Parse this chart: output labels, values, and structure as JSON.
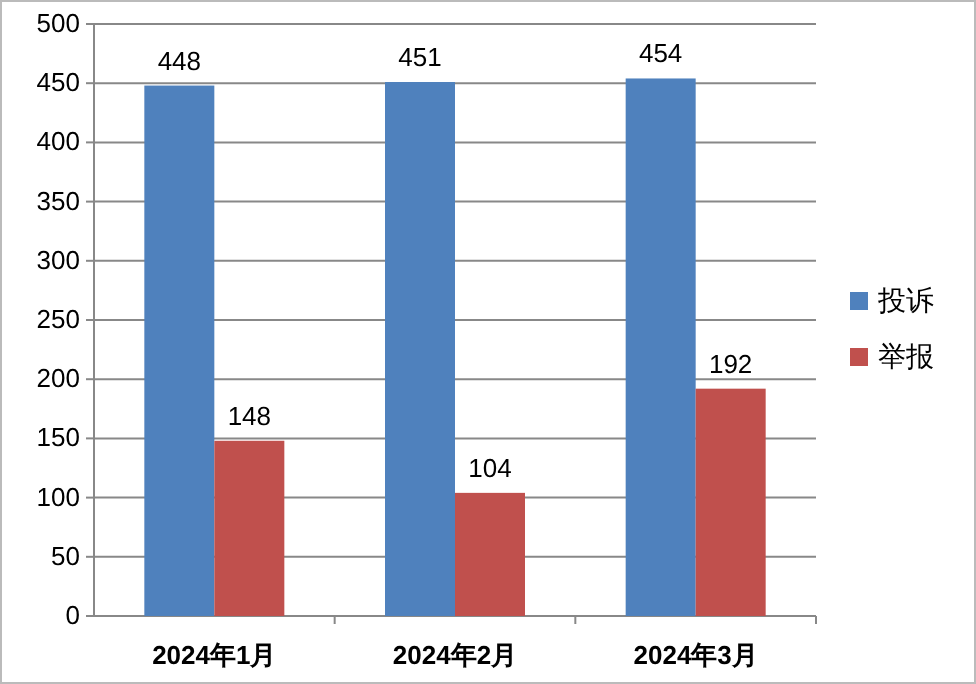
{
  "chart_data": {
    "type": "bar",
    "categories": [
      "2024年1月",
      "2024年2月",
      "2024年3月"
    ],
    "series": [
      {
        "name": "投诉",
        "color": "#4f81bd",
        "values": [
          448,
          451,
          454
        ]
      },
      {
        "name": "举报",
        "color": "#c0504d",
        "values": [
          148,
          104,
          192
        ]
      }
    ],
    "ylim": [
      0,
      500
    ],
    "yticks": [
      0,
      50,
      100,
      150,
      200,
      250,
      300,
      350,
      400,
      450,
      500
    ],
    "grid": "y",
    "legend": "right",
    "data_labels": true
  }
}
